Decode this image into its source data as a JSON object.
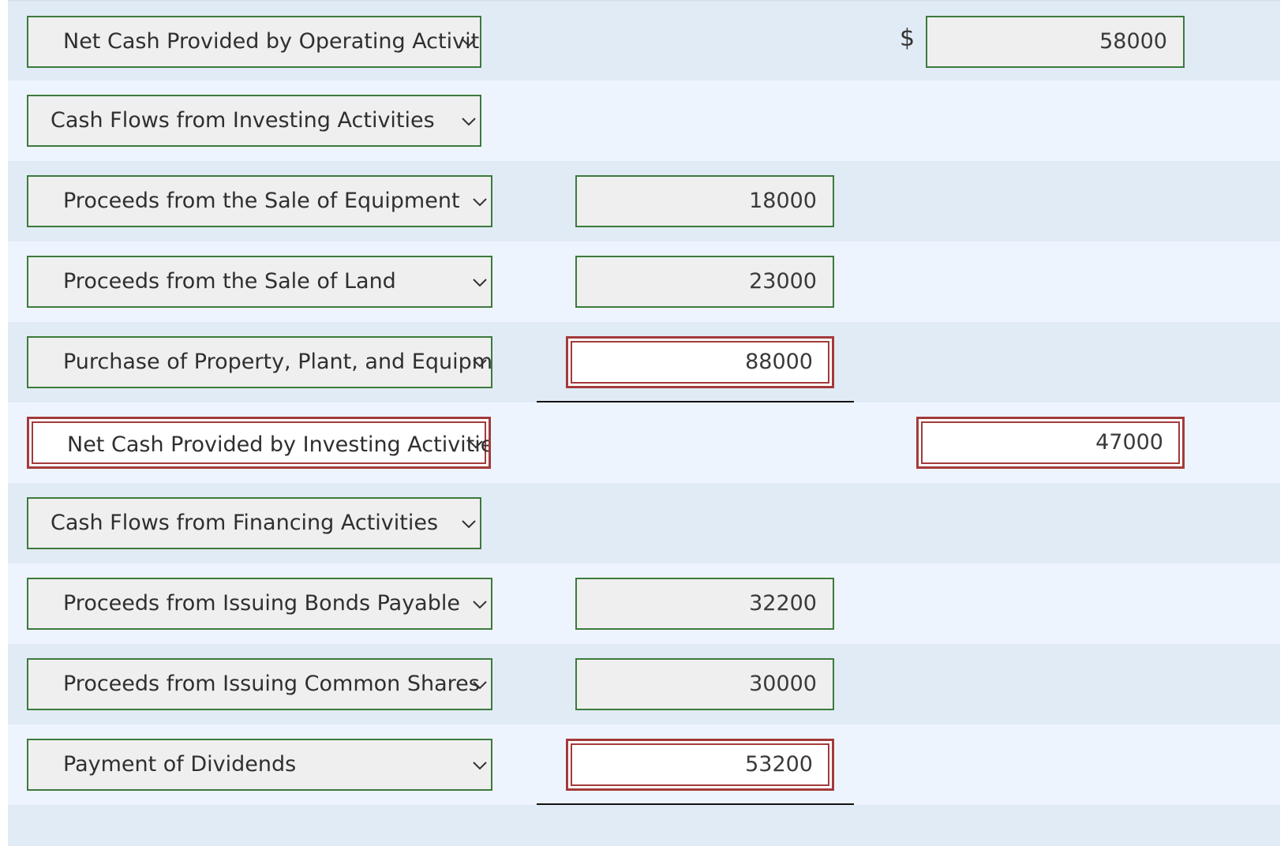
{
  "rows": [
    {
      "account": "Net Cash Provided by Operating Activities",
      "col1": "",
      "col2": "58000",
      "currency": "$"
    },
    {
      "account": "Cash Flows from Investing Activities",
      "col1": "",
      "col2": ""
    },
    {
      "account": "Proceeds from the Sale of Equipment",
      "col1": "18000",
      "col2": ""
    },
    {
      "account": "Proceeds from the Sale of Land",
      "col1": "23000",
      "col2": ""
    },
    {
      "account": "Purchase of Property, Plant, and Equipment",
      "col1": "88000",
      "col2": ""
    },
    {
      "account": "Net Cash Provided by Investing Activities",
      "col1": "",
      "col2": "47000"
    },
    {
      "account": "Cash Flows from Financing Activities",
      "col1": "",
      "col2": ""
    },
    {
      "account": "Proceeds from Issuing Bonds Payable",
      "col1": "32200",
      "col2": ""
    },
    {
      "account": "Proceeds from Issuing Common Shares",
      "col1": "30000",
      "col2": ""
    },
    {
      "account": "Payment of Dividends",
      "col1": "53200",
      "col2": ""
    }
  ],
  "colors": {
    "row_odd": "#e1ebf6",
    "row_even": "#eef4fe",
    "field_border_ok": "#3c7a3c",
    "field_border_error": "#a33a3a",
    "field_bg": "#efefef"
  }
}
